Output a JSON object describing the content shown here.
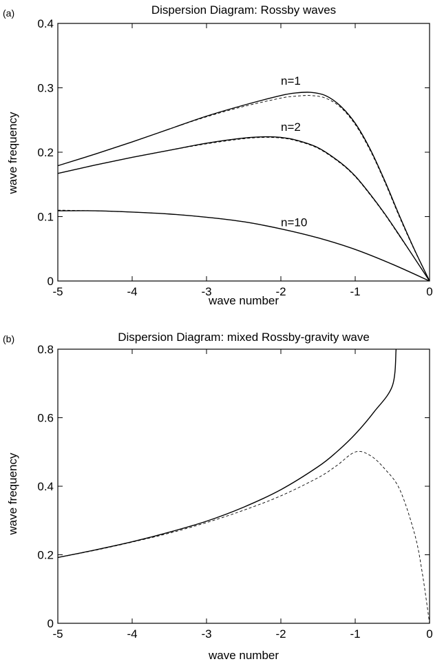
{
  "chart_data": [
    {
      "panel": "(a)",
      "type": "line",
      "title": "Dispersion Diagram: Rossby waves",
      "xlabel": "wave number",
      "ylabel": "wave frequency",
      "xlim": [
        -5,
        0
      ],
      "ylim": [
        0,
        0.4
      ],
      "xticks": [
        -5,
        -4,
        -3,
        -2,
        -1,
        0
      ],
      "yticks": [
        0,
        0.1,
        0.2,
        0.3,
        0.4
      ],
      "xtick_labels": [
        "-5",
        "-4",
        "-3",
        "-2",
        "-1",
        "0"
      ],
      "ytick_labels": [
        "0",
        "0.1",
        "0.2",
        "0.3",
        "0.4"
      ],
      "grid": false,
      "annotations": [
        {
          "text": "n=1",
          "x": -2.0,
          "y": 0.305
        },
        {
          "text": "n=2",
          "x": -2.0,
          "y": 0.233
        },
        {
          "text": "n=10",
          "x": -2.0,
          "y": 0.085
        }
      ],
      "series": [
        {
          "style": "solid",
          "x": [
            -5,
            -4.5,
            -4,
            -3.5,
            -3,
            -2.5,
            -2,
            -1.8,
            -1.6,
            -1.4,
            -1.2,
            -1,
            -0.8,
            -0.6,
            -0.4,
            -0.2,
            0
          ],
          "y": [
            0.179,
            0.197,
            0.216,
            0.236,
            0.256,
            0.273,
            0.288,
            0.292,
            0.293,
            0.288,
            0.272,
            0.245,
            0.205,
            0.155,
            0.1,
            0.048,
            0.0
          ]
        },
        {
          "style": "dashed",
          "x": [
            -5,
            -4.5,
            -4,
            -3.5,
            -3,
            -2.5,
            -2,
            -1.8,
            -1.6,
            -1.4,
            -1.2,
            -1,
            -0.8,
            -0.6,
            -0.4,
            -0.2,
            0
          ],
          "y": [
            0.179,
            0.197,
            0.216,
            0.236,
            0.255,
            0.271,
            0.284,
            0.287,
            0.288,
            0.284,
            0.27,
            0.243,
            0.203,
            0.153,
            0.098,
            0.047,
            0.0
          ]
        },
        {
          "style": "solid",
          "x": [
            -5,
            -4.5,
            -4,
            -3.5,
            -3,
            -2.5,
            -2.2,
            -2,
            -1.8,
            -1.5,
            -1.2,
            -1,
            -0.8,
            -0.6,
            -0.4,
            -0.2,
            0
          ],
          "y": [
            0.167,
            0.18,
            0.192,
            0.203,
            0.214,
            0.222,
            0.224,
            0.223,
            0.219,
            0.207,
            0.184,
            0.163,
            0.135,
            0.104,
            0.07,
            0.035,
            0.0
          ]
        },
        {
          "style": "dashed",
          "x": [
            -5,
            -4.5,
            -4,
            -3.5,
            -3,
            -2.5,
            -2.2,
            -2,
            -1.8,
            -1.5,
            -1.2,
            -1,
            -0.8,
            -0.6,
            -0.4,
            -0.2,
            0
          ],
          "y": [
            0.167,
            0.18,
            0.192,
            0.203,
            0.213,
            0.221,
            0.223,
            0.222,
            0.218,
            0.206,
            0.183,
            0.162,
            0.134,
            0.103,
            0.069,
            0.035,
            0.0
          ]
        },
        {
          "style": "solid",
          "x": [
            -5,
            -4.5,
            -4,
            -3.5,
            -3,
            -2.5,
            -2,
            -1.5,
            -1,
            -0.5,
            0
          ],
          "y": [
            0.109,
            0.109,
            0.107,
            0.104,
            0.099,
            0.092,
            0.081,
            0.067,
            0.049,
            0.026,
            0.0
          ]
        },
        {
          "style": "dashed",
          "x": [
            -5,
            -4.5,
            -4,
            -3.5,
            -3,
            -2.5,
            -2,
            -1.5,
            -1,
            -0.5,
            0
          ],
          "y": [
            0.11,
            0.109,
            0.107,
            0.104,
            0.099,
            0.092,
            0.081,
            0.067,
            0.049,
            0.026,
            0.0
          ]
        }
      ]
    },
    {
      "panel": "(b)",
      "type": "line",
      "title": "Dispersion Diagram: mixed Rossby-gravity wave",
      "xlabel": "wave number",
      "ylabel": "wave frequency",
      "xlim": [
        -5,
        0
      ],
      "ylim": [
        0,
        0.8
      ],
      "xticks": [
        -5,
        -4,
        -3,
        -2,
        -1,
        0
      ],
      "yticks": [
        0,
        0.2,
        0.4,
        0.6,
        0.8
      ],
      "xtick_labels": [
        "-5",
        "-4",
        "-3",
        "-2",
        "-1",
        "0"
      ],
      "ytick_labels": [
        "0",
        "0.2",
        "0.4",
        "0.6",
        "0.8"
      ],
      "grid": false,
      "series": [
        {
          "style": "solid",
          "x": [
            -5,
            -4.5,
            -4,
            -3.5,
            -3,
            -2.5,
            -2,
            -1.5,
            -1.25,
            -1,
            -0.75,
            -0.5,
            -0.45
          ],
          "y": [
            0.192,
            0.214,
            0.238,
            0.266,
            0.298,
            0.339,
            0.39,
            0.457,
            0.5,
            0.552,
            0.616,
            0.693,
            0.8
          ]
        },
        {
          "style": "dashed",
          "x": [
            -5,
            -4.5,
            -4,
            -3.5,
            -3,
            -2.5,
            -2,
            -1.5,
            -1.25,
            -1,
            -0.8,
            -0.6,
            -0.4,
            -0.2,
            -0.1,
            0
          ],
          "y": [
            0.192,
            0.213,
            0.237,
            0.263,
            0.294,
            0.33,
            0.372,
            0.425,
            0.46,
            0.5,
            0.49,
            0.45,
            0.39,
            0.26,
            0.15,
            0.0
          ]
        }
      ]
    }
  ]
}
